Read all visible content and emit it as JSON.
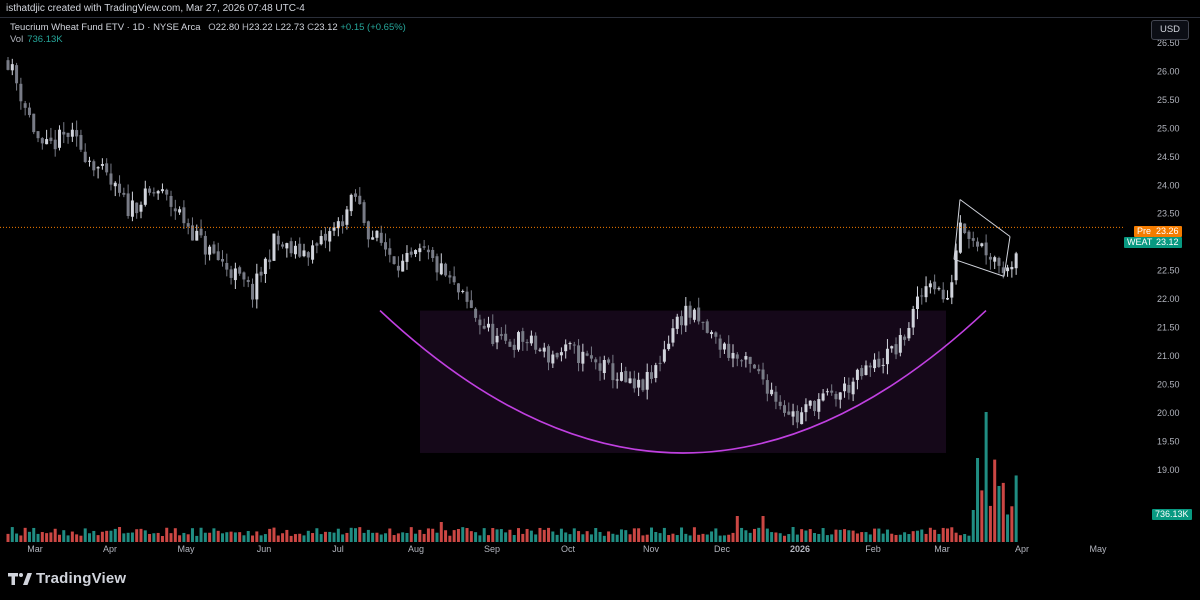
{
  "header": {
    "caption": "isthatdjic created with TradingView.com, Mar 27, 2026 07:48 UTC-4"
  },
  "legend": {
    "symbol": "Teucrium Wheat Fund ETV · 1D · NYSE Arca",
    "o_label": "O",
    "o_value": "22.80",
    "h_label": "H",
    "h_value": "23.22",
    "l_label": "L",
    "l_value": "22.73",
    "c_label": "C",
    "c_value": "23.12",
    "change": "+0.15 (+0.65%)",
    "vol_label": "Vol",
    "vol_value": "736.13K"
  },
  "currency_button": "USD",
  "price_tags": {
    "pre_label": "Pre",
    "pre_value": "23.26",
    "ticker_label": "WEAT",
    "ticker_value": "23.12",
    "volume_value": "736.13K"
  },
  "footer": {
    "brand": "TradingView"
  },
  "colors": {
    "up": "#d1d4dc",
    "down": "#787b86",
    "vol_up": "#26a69a",
    "vol_down": "#ef5350",
    "pattern": "#c040e0",
    "pre": "#f57c00",
    "ticker": "#089981"
  },
  "chart_data": {
    "type": "candlestick",
    "y_ticks": [
      "26.50",
      "26.00",
      "25.50",
      "25.00",
      "24.50",
      "24.00",
      "23.50",
      "23.00",
      "22.50",
      "22.00",
      "21.50",
      "21.00",
      "20.50",
      "20.00",
      "19.50",
      "19.00"
    ],
    "ylim": [
      18.5,
      26.5
    ],
    "x_ticks": [
      "Mar",
      "Apr",
      "May",
      "Jun",
      "Jul",
      "Aug",
      "Sep",
      "Oct",
      "Nov",
      "Dec",
      "2026",
      "Feb",
      "Mar",
      "Apr",
      "May"
    ],
    "price_path": [
      [
        0,
        26.2
      ],
      [
        3,
        25.6
      ],
      [
        8,
        24.6
      ],
      [
        14,
        24.9
      ],
      [
        20,
        24.4
      ],
      [
        28,
        23.6
      ],
      [
        35,
        23.9
      ],
      [
        40,
        23.5
      ],
      [
        46,
        22.9
      ],
      [
        52,
        22.5
      ],
      [
        57,
        22.1
      ],
      [
        62,
        23.0
      ],
      [
        67,
        22.8
      ],
      [
        72,
        22.9
      ],
      [
        77,
        23.3
      ],
      [
        81,
        23.8
      ],
      [
        84,
        23.2
      ],
      [
        88,
        22.9
      ],
      [
        92,
        22.6
      ],
      [
        97,
        22.8
      ],
      [
        102,
        22.4
      ],
      [
        106,
        22.0
      ],
      [
        110,
        21.6
      ],
      [
        115,
        21.2
      ],
      [
        120,
        21.3
      ],
      [
        126,
        21.0
      ],
      [
        131,
        21.1
      ],
      [
        136,
        20.9
      ],
      [
        141,
        20.7
      ],
      [
        146,
        20.4
      ],
      [
        150,
        20.6
      ],
      [
        155,
        21.5
      ],
      [
        158,
        21.8
      ],
      [
        162,
        21.5
      ],
      [
        166,
        21.2
      ],
      [
        171,
        20.9
      ],
      [
        176,
        20.6
      ],
      [
        180,
        20.2
      ],
      [
        184,
        19.9
      ],
      [
        188,
        20.2
      ],
      [
        193,
        20.3
      ],
      [
        198,
        20.6
      ],
      [
        203,
        20.9
      ],
      [
        208,
        21.2
      ],
      [
        212,
        21.9
      ],
      [
        215,
        22.4
      ],
      [
        219,
        21.9
      ],
      [
        222,
        23.4
      ],
      [
        225,
        23.1
      ],
      [
        229,
        22.8
      ],
      [
        233,
        22.5
      ],
      [
        235,
        22.9
      ]
    ],
    "cup": {
      "left_date": "Jul",
      "right_date": "Mar",
      "low": 19.3,
      "rim": 21.8
    },
    "flag": {
      "top_line": [
        23.75,
        23.1
      ],
      "bottom_line": [
        22.7,
        22.4
      ]
    },
    "last_price": 23.12,
    "pre_market": 23.26,
    "volume_last": "736.13K"
  }
}
